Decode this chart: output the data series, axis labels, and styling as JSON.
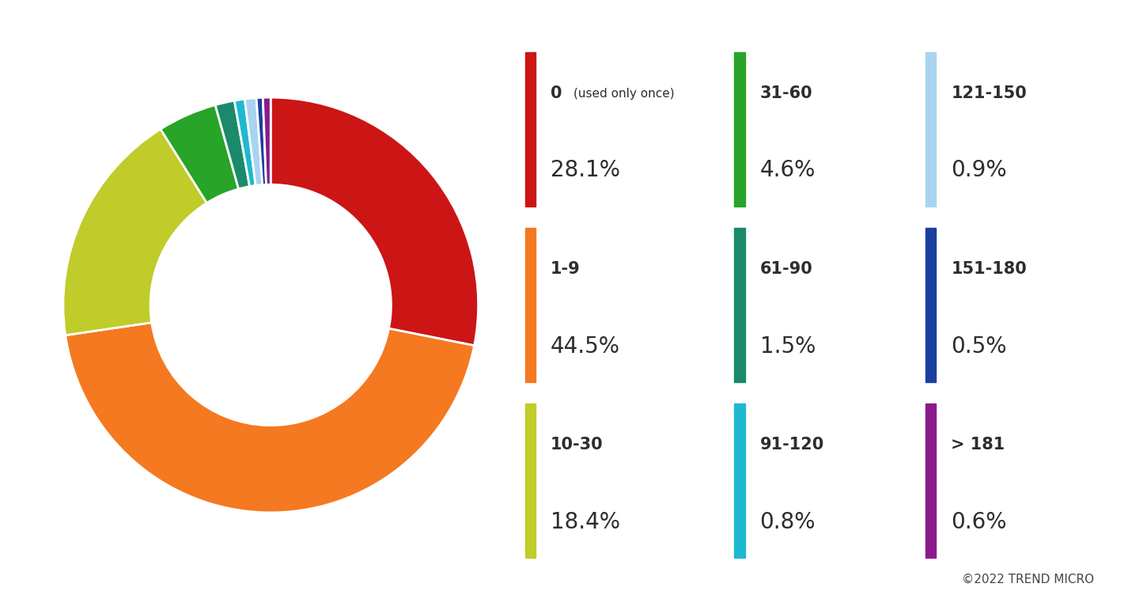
{
  "slices": [
    {
      "label": "0 (used only once)",
      "pct": 28.1,
      "color": "#CC1515"
    },
    {
      "label": "1-9",
      "pct": 44.5,
      "color": "#F47920"
    },
    {
      "label": "10-30",
      "pct": 18.4,
      "color": "#BFCC2A"
    },
    {
      "label": "31-60",
      "pct": 4.6,
      "color": "#28A428"
    },
    {
      "label": "61-90",
      "pct": 1.5,
      "color": "#1A8A6A"
    },
    {
      "label": "91-120",
      "pct": 0.8,
      "color": "#1EB8D0"
    },
    {
      "label": "121-150",
      "pct": 0.9,
      "color": "#A8D4F0"
    },
    {
      "label": "151-180",
      "pct": 0.5,
      "color": "#1B3FA0"
    },
    {
      "label": "> 181",
      "pct": 0.6,
      "color": "#8B1A8B"
    }
  ],
  "legend_items": [
    {
      "label": "0",
      "label_extra": "(used only once)",
      "pct": "28.1%",
      "color": "#CC1515"
    },
    {
      "label": "1-9",
      "label_extra": "",
      "pct": "44.5%",
      "color": "#F47920"
    },
    {
      "label": "10-30",
      "label_extra": "",
      "pct": "18.4%",
      "color": "#BFCC2A"
    },
    {
      "label": "31-60",
      "label_extra": "",
      "pct": "4.6%",
      "color": "#28A428"
    },
    {
      "label": "61-90",
      "label_extra": "",
      "pct": "1.5%",
      "color": "#1A8A6A"
    },
    {
      "label": "91-120",
      "label_extra": "",
      "pct": "0.8%",
      "color": "#1EB8D0"
    },
    {
      "label": "121-150",
      "label_extra": "",
      "pct": "0.9%",
      "color": "#A8D4F0"
    },
    {
      "label": "151-180",
      "label_extra": "",
      "pct": "0.5%",
      "color": "#1B3FA0"
    },
    {
      "label": "> 181",
      "label_extra": "",
      "pct": "0.6%",
      "color": "#8B1A8B"
    }
  ],
  "copyright": "©2022 TREND MICRO",
  "background_color": "#ffffff",
  "text_color": "#2d2d2d",
  "start_angle": 90
}
